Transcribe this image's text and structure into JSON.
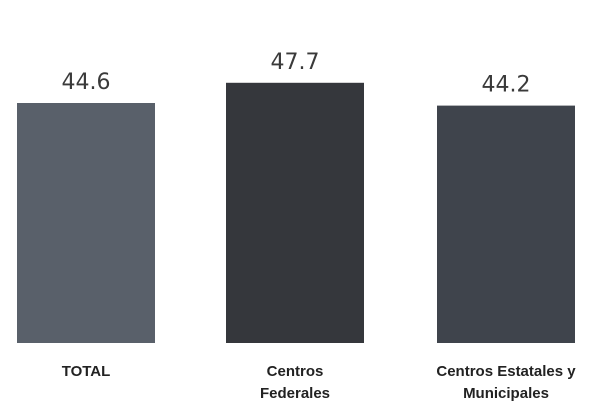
{
  "chart_data": {
    "type": "bar",
    "categories": [
      [
        "TOTAL"
      ],
      [
        "Centros",
        "Federales"
      ],
      [
        "Centros Estatales y",
        "Municipales"
      ]
    ],
    "values": [
      44.6,
      47.7,
      44.2
    ],
    "value_labels": [
      "44.6",
      "47.7",
      "44.2"
    ],
    "colors": [
      "#59606a",
      "#35373c",
      "#3f444c"
    ],
    "title": "",
    "xlabel": "",
    "ylabel": "",
    "grid": false,
    "legend": "none"
  }
}
